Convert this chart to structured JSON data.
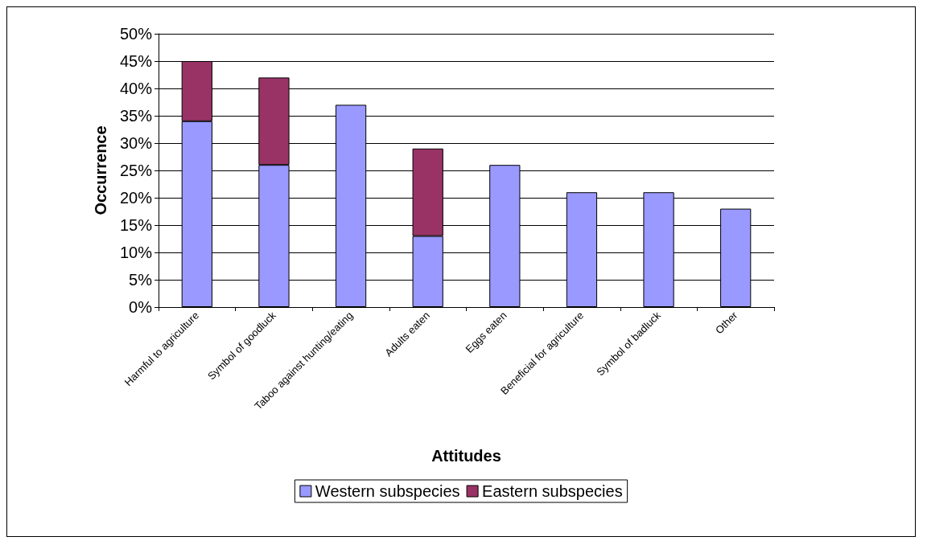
{
  "chart_data": {
    "type": "bar",
    "stacked": true,
    "xlabel": "Attitudes",
    "ylabel": "Occurrence",
    "categories": [
      "Harmful to agriculture",
      "Symbol of goodluck",
      "Taboo against hunting/eating",
      "Adults eaten",
      "Eggs eaten",
      "Beneficial for agriculture",
      "Symbol of badluck",
      "Other"
    ],
    "series": [
      {
        "name": "Western subspecies",
        "color": "#9999ff",
        "values": [
          34,
          26,
          37,
          13,
          26,
          21,
          21,
          18
        ]
      },
      {
        "name": "Eastern subspecies",
        "color": "#993366",
        "values": [
          11,
          16,
          null,
          16,
          null,
          null,
          null,
          null
        ]
      }
    ],
    "ylim": [
      0,
      50
    ],
    "yticks": [
      {
        "value": 0,
        "label": "0%"
      },
      {
        "value": 5,
        "label": "5%"
      },
      {
        "value": 10,
        "label": "10%"
      },
      {
        "value": 15,
        "label": "15%"
      },
      {
        "value": 20,
        "label": "20%"
      },
      {
        "value": 25,
        "label": "25%"
      },
      {
        "value": 30,
        "label": "30%"
      },
      {
        "value": 35,
        "label": "35%"
      },
      {
        "value": 40,
        "label": "40%"
      },
      {
        "value": 45,
        "label": "45%"
      },
      {
        "value": 50,
        "label": "50%"
      }
    ],
    "grid": "y",
    "legend": "bottom"
  }
}
